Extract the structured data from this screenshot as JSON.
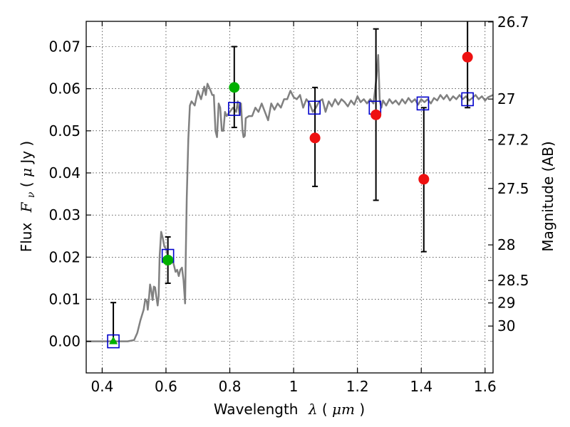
{
  "chart_data": {
    "type": "scatter",
    "xlabel": {
      "prefix": "Wavelength",
      "symbol": "λ",
      "open": " (",
      "unit": "μm",
      "close": ")"
    },
    "ylabel": {
      "prefix": "Flux",
      "symbol": "F",
      "sub": "ν",
      "open": " ( ",
      "unit": "μ",
      "unit_rest": "Jy",
      "close": " )"
    },
    "y2label": "Magnitude (AB)",
    "xlim": [
      0.35,
      1.625
    ],
    "ylim": [
      -0.0075,
      0.076
    ],
    "grid": true,
    "x_ticks": [
      {
        "value": 0.4,
        "label": "0.4"
      },
      {
        "value": 0.6,
        "label": "0.6"
      },
      {
        "value": 0.8,
        "label": "0.8"
      },
      {
        "value": 1.0,
        "label": "1"
      },
      {
        "value": 1.2,
        "label": "1.2"
      },
      {
        "value": 1.4,
        "label": "1.4"
      },
      {
        "value": 1.6,
        "label": "1.6"
      }
    ],
    "y_ticks": [
      {
        "value": 0.0,
        "label": "0.00"
      },
      {
        "value": 0.01,
        "label": "0.01"
      },
      {
        "value": 0.02,
        "label": "0.02"
      },
      {
        "value": 0.03,
        "label": "0.03"
      },
      {
        "value": 0.04,
        "label": "0.04"
      },
      {
        "value": 0.05,
        "label": "0.05"
      },
      {
        "value": 0.06,
        "label": "0.06"
      },
      {
        "value": 0.07,
        "label": "0.07"
      }
    ],
    "mag_ticks": [
      {
        "mag": 26.7,
        "label": "26.7"
      },
      {
        "mag": 27.0,
        "label": "27"
      },
      {
        "mag": 27.2,
        "label": "27.2"
      },
      {
        "mag": 27.5,
        "label": "27.5"
      },
      {
        "mag": 28.0,
        "label": "28"
      },
      {
        "mag": 28.5,
        "label": "28.5"
      },
      {
        "mag": 29.0,
        "label": "29"
      },
      {
        "mag": 30.0,
        "label": "30"
      }
    ],
    "sed_curve": {
      "color": "#808080",
      "points": [
        [
          0.35,
          0.0
        ],
        [
          0.48,
          0.0
        ],
        [
          0.5,
          0.0003
        ],
        [
          0.51,
          0.002
        ],
        [
          0.52,
          0.005
        ],
        [
          0.53,
          0.0075
        ],
        [
          0.535,
          0.01
        ],
        [
          0.54,
          0.0095
        ],
        [
          0.543,
          0.0075
        ],
        [
          0.547,
          0.0105
        ],
        [
          0.55,
          0.0135
        ],
        [
          0.553,
          0.0125
        ],
        [
          0.558,
          0.0098
        ],
        [
          0.562,
          0.013
        ],
        [
          0.566,
          0.0128
        ],
        [
          0.57,
          0.0105
        ],
        [
          0.574,
          0.0085
        ],
        [
          0.577,
          0.0108
        ],
        [
          0.58,
          0.02
        ],
        [
          0.585,
          0.026
        ],
        [
          0.59,
          0.0245
        ],
        [
          0.595,
          0.0225
        ],
        [
          0.6,
          0.022
        ],
        [
          0.605,
          0.0205
        ],
        [
          0.61,
          0.02
        ],
        [
          0.615,
          0.0185
        ],
        [
          0.62,
          0.0195
        ],
        [
          0.625,
          0.018
        ],
        [
          0.63,
          0.0165
        ],
        [
          0.635,
          0.017
        ],
        [
          0.64,
          0.0155
        ],
        [
          0.645,
          0.017
        ],
        [
          0.65,
          0.0175
        ],
        [
          0.655,
          0.0145
        ],
        [
          0.66,
          0.009
        ],
        [
          0.662,
          0.02
        ],
        [
          0.665,
          0.034
        ],
        [
          0.67,
          0.048
        ],
        [
          0.675,
          0.056
        ],
        [
          0.68,
          0.057
        ],
        [
          0.69,
          0.056
        ],
        [
          0.7,
          0.0595
        ],
        [
          0.71,
          0.0575
        ],
        [
          0.72,
          0.0605
        ],
        [
          0.725,
          0.0585
        ],
        [
          0.73,
          0.0612
        ],
        [
          0.74,
          0.0595
        ],
        [
          0.745,
          0.0585
        ],
        [
          0.75,
          0.0585
        ],
        [
          0.755,
          0.05
        ],
        [
          0.76,
          0.0485
        ],
        [
          0.765,
          0.0565
        ],
        [
          0.77,
          0.0555
        ],
        [
          0.775,
          0.05
        ],
        [
          0.78,
          0.05
        ],
        [
          0.785,
          0.0545
        ],
        [
          0.79,
          0.0535
        ],
        [
          0.8,
          0.0545
        ],
        [
          0.81,
          0.0555
        ],
        [
          0.82,
          0.0545
        ],
        [
          0.825,
          0.057
        ],
        [
          0.83,
          0.054
        ],
        [
          0.835,
          0.0565
        ],
        [
          0.84,
          0.05
        ],
        [
          0.843,
          0.0485
        ],
        [
          0.847,
          0.0488
        ],
        [
          0.85,
          0.053
        ],
        [
          0.86,
          0.0535
        ],
        [
          0.87,
          0.0535
        ],
        [
          0.88,
          0.0555
        ],
        [
          0.89,
          0.0545
        ],
        [
          0.9,
          0.0565
        ],
        [
          0.91,
          0.0545
        ],
        [
          0.92,
          0.0525
        ],
        [
          0.93,
          0.0565
        ],
        [
          0.94,
          0.055
        ],
        [
          0.95,
          0.0565
        ],
        [
          0.96,
          0.0555
        ],
        [
          0.97,
          0.0575
        ],
        [
          0.98,
          0.0575
        ],
        [
          0.99,
          0.0595
        ],
        [
          1.0,
          0.058
        ],
        [
          1.01,
          0.0575
        ],
        [
          1.02,
          0.0585
        ],
        [
          1.03,
          0.0555
        ],
        [
          1.04,
          0.0575
        ],
        [
          1.05,
          0.0565
        ],
        [
          1.06,
          0.0545
        ],
        [
          1.07,
          0.0555
        ],
        [
          1.08,
          0.057
        ],
        [
          1.09,
          0.0575
        ],
        [
          1.1,
          0.0545
        ],
        [
          1.11,
          0.057
        ],
        [
          1.12,
          0.0558
        ],
        [
          1.13,
          0.0575
        ],
        [
          1.14,
          0.0562
        ],
        [
          1.15,
          0.0575
        ],
        [
          1.16,
          0.0568
        ],
        [
          1.17,
          0.0558
        ],
        [
          1.18,
          0.0572
        ],
        [
          1.19,
          0.0562
        ],
        [
          1.2,
          0.0582
        ],
        [
          1.21,
          0.0568
        ],
        [
          1.22,
          0.0575
        ],
        [
          1.23,
          0.0565
        ],
        [
          1.24,
          0.0575
        ],
        [
          1.25,
          0.0565
        ],
        [
          1.255,
          0.0595
        ],
        [
          1.26,
          0.063
        ],
        [
          1.265,
          0.068
        ],
        [
          1.27,
          0.057
        ],
        [
          1.275,
          0.0555
        ],
        [
          1.28,
          0.0572
        ],
        [
          1.29,
          0.056
        ],
        [
          1.3,
          0.0575
        ],
        [
          1.31,
          0.0565
        ],
        [
          1.32,
          0.0572
        ],
        [
          1.33,
          0.0562
        ],
        [
          1.34,
          0.0575
        ],
        [
          1.35,
          0.0565
        ],
        [
          1.36,
          0.0578
        ],
        [
          1.37,
          0.0568
        ],
        [
          1.38,
          0.0575
        ],
        [
          1.39,
          0.0562
        ],
        [
          1.4,
          0.0575
        ],
        [
          1.41,
          0.0568
        ],
        [
          1.42,
          0.0575
        ],
        [
          1.43,
          0.0565
        ],
        [
          1.44,
          0.0578
        ],
        [
          1.45,
          0.0572
        ],
        [
          1.46,
          0.0585
        ],
        [
          1.47,
          0.0575
        ],
        [
          1.48,
          0.0585
        ],
        [
          1.49,
          0.0572
        ],
        [
          1.5,
          0.0582
        ],
        [
          1.51,
          0.0575
        ],
        [
          1.52,
          0.0585
        ],
        [
          1.53,
          0.0575
        ],
        [
          1.54,
          0.0582
        ],
        [
          1.55,
          0.0572
        ],
        [
          1.56,
          0.0578
        ],
        [
          1.57,
          0.0585
        ],
        [
          1.58,
          0.0575
        ],
        [
          1.59,
          0.0582
        ],
        [
          1.6,
          0.0572
        ],
        [
          1.61,
          0.058
        ],
        [
          1.625,
          0.0585
        ]
      ]
    },
    "model_points": {
      "marker": "open-square",
      "color": "#0000cc",
      "points": [
        [
          0.435,
          0.0
        ],
        [
          0.606,
          0.0203
        ],
        [
          0.814,
          0.0552
        ],
        [
          1.065,
          0.0555
        ],
        [
          1.255,
          0.0555
        ],
        [
          1.405,
          0.0565
        ],
        [
          1.545,
          0.0575
        ]
      ]
    },
    "observed_points": [
      {
        "x": 0.435,
        "y": 0.0,
        "err_low": 0.0,
        "err_high": 0.0092,
        "marker": "triangle",
        "color": "#00b000"
      },
      {
        "x": 0.606,
        "y": 0.0193,
        "err_low": 0.0138,
        "err_high": 0.0248,
        "marker": "circle",
        "color": "#00b000"
      },
      {
        "x": 0.814,
        "y": 0.0603,
        "err_low": 0.0508,
        "err_high": 0.07,
        "marker": "circle",
        "color": "#00b000"
      },
      {
        "x": 1.067,
        "y": 0.0483,
        "err_low": 0.0368,
        "err_high": 0.0603,
        "marker": "circle",
        "color": "#ee1111"
      },
      {
        "x": 1.258,
        "y": 0.0538,
        "err_low": 0.0335,
        "err_high": 0.0742,
        "marker": "circle",
        "color": "#ee1111"
      },
      {
        "x": 1.408,
        "y": 0.0385,
        "err_low": 0.0213,
        "err_high": 0.0555,
        "marker": "circle",
        "color": "#ee1111"
      },
      {
        "x": 1.545,
        "y": 0.0675,
        "err_low": 0.0555,
        "err_high": 0.076,
        "marker": "circle",
        "color": "#ee1111"
      }
    ]
  }
}
